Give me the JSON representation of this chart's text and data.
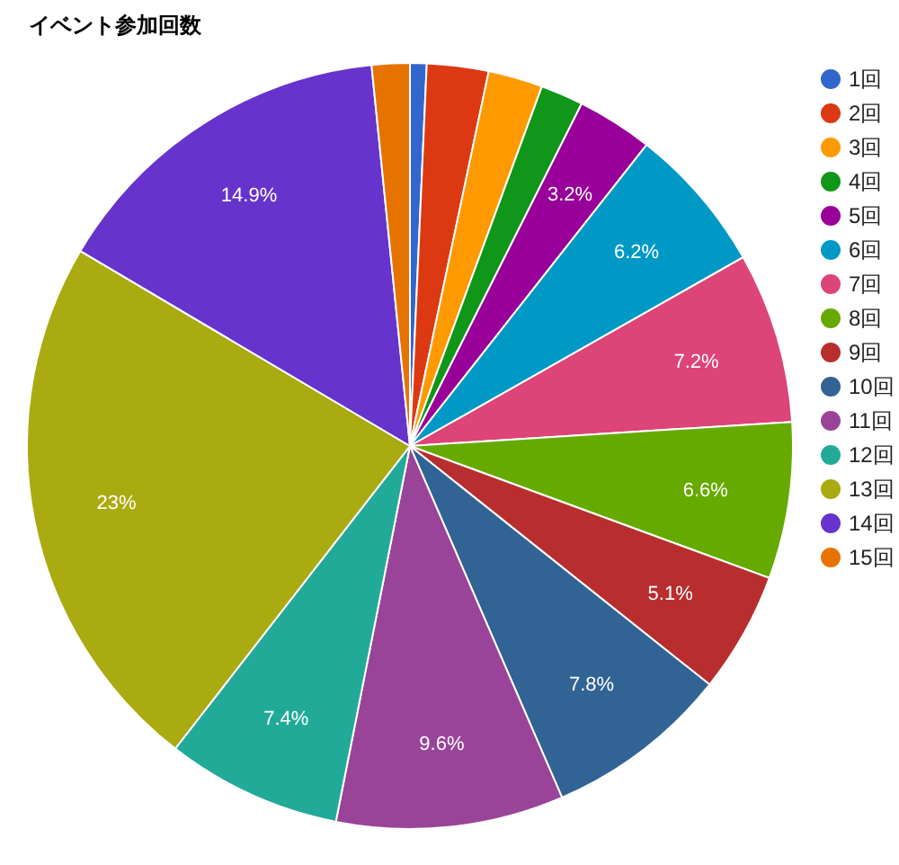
{
  "chart_data": {
    "type": "pie",
    "title": "イベント参加回数",
    "categories": [
      "1回",
      "2回",
      "3回",
      "4回",
      "5回",
      "6回",
      "7回",
      "8回",
      "9回",
      "10回",
      "11回",
      "12回",
      "13回",
      "14回",
      "15回"
    ],
    "values": [
      0.7,
      2.6,
      2.3,
      1.8,
      3.2,
      6.2,
      7.2,
      6.6,
      5.1,
      7.8,
      9.6,
      7.4,
      23,
      14.9,
      1.6
    ],
    "colors": [
      "#3366cc",
      "#dc3912",
      "#ff9900",
      "#109618",
      "#990099",
      "#0099c6",
      "#dd4477",
      "#66aa00",
      "#b82e2e",
      "#316395",
      "#994499",
      "#22aa99",
      "#aaaa11",
      "#6633cc",
      "#e67300"
    ],
    "value_labels": [
      null,
      null,
      null,
      null,
      "3.2%",
      "6.2%",
      "7.2%",
      "6.6%",
      "5.1%",
      "7.8%",
      "9.6%",
      "7.4%",
      "23%",
      "14.9%",
      null
    ],
    "legend": "right"
  }
}
